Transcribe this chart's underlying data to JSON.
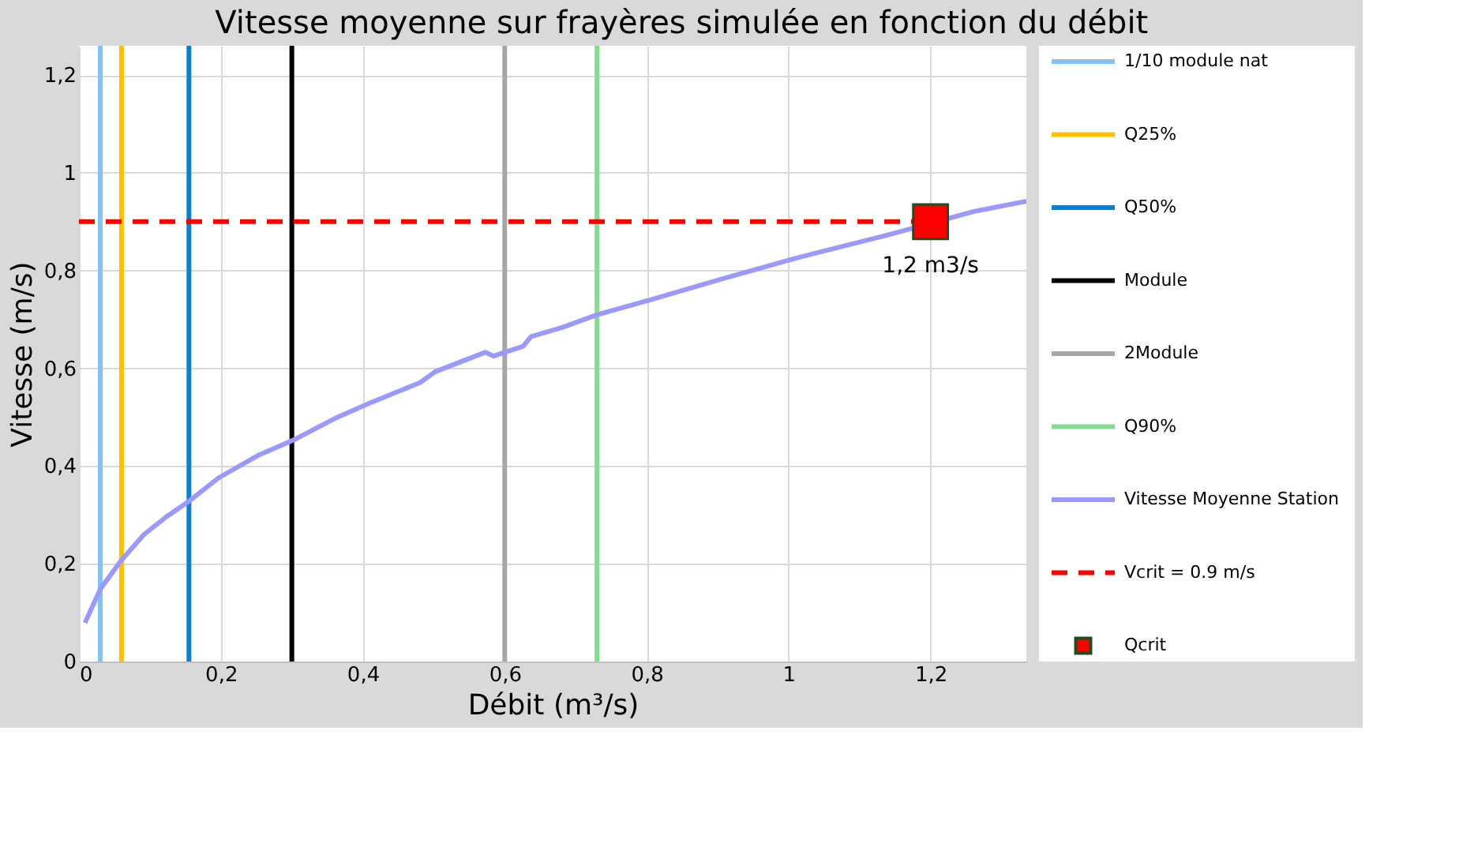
{
  "chart_data": {
    "type": "line",
    "title": "Vitesse moyenne sur frayères simulée en fonction du débit",
    "xlabel": "Débit (m³/s)",
    "ylabel": "Vitesse (m/s)",
    "xlim": [
      0,
      1.335
    ],
    "xticks": [
      0,
      {
        "value": 0.2,
        "label": "0,2"
      },
      {
        "value": 0.4,
        "label": "0,4"
      },
      {
        "value": 0.6,
        "label": "0,6"
      },
      {
        "value": 0.8,
        "label": "0,8"
      },
      1,
      {
        "value": 1.2,
        "label": "1,2"
      }
    ],
    "ylim": [
      0,
      1.26
    ],
    "yticks": [
      0,
      {
        "value": 0.2,
        "label": "0,2"
      },
      {
        "value": 0.4,
        "label": "0,4"
      },
      {
        "value": 0.6,
        "label": "0,6"
      },
      {
        "value": 0.8,
        "label": "0,8"
      },
      1,
      {
        "value": 1.2,
        "label": "1,2"
      }
    ],
    "grid": true,
    "legend": "right",
    "series": [
      {
        "name": "1/10 module nat",
        "color": "#7fc4f5",
        "x": [
          0.03,
          0.03
        ],
        "values": [
          0,
          1.26
        ]
      },
      {
        "name": "Q25%",
        "color": "#ffc000",
        "x": [
          0.06,
          0.06
        ],
        "values": [
          0,
          1.26
        ]
      },
      {
        "name": "Q50%",
        "color": "#0a7fd0",
        "x": [
          0.155,
          0.155
        ],
        "values": [
          0,
          1.26
        ]
      },
      {
        "name": "Module",
        "color": "#000000",
        "x": [
          0.3,
          0.3
        ],
        "values": [
          0,
          1.26
        ]
      },
      {
        "name": "2Module",
        "color": "#a6a6a6",
        "x": [
          0.6,
          0.6
        ],
        "values": [
          0,
          1.26
        ]
      },
      {
        "name": "Q90%",
        "color": "#84dc8c",
        "x": [
          0.73,
          0.73
        ],
        "values": [
          0,
          1.26
        ]
      },
      {
        "name": "Vitesse Moyenne Station",
        "color": "#9999ff",
        "x": [
          0.0085,
          0.03,
          0.059,
          0.091,
          0.123,
          0.155,
          0.197,
          0.254,
          0.302,
          0.36,
          0.41,
          0.481,
          0.502,
          0.573,
          0.584,
          0.626,
          0.637,
          0.68,
          0.729,
          0.807,
          0.906,
          1.009,
          1.069,
          1.14,
          1.261,
          1.335
        ],
        "values": [
          0.079,
          0.148,
          0.206,
          0.259,
          0.296,
          0.328,
          0.376,
          0.423,
          0.453,
          0.497,
          0.529,
          0.571,
          0.593,
          0.633,
          0.625,
          0.645,
          0.665,
          0.683,
          0.709,
          0.741,
          0.783,
          0.825,
          0.847,
          0.873,
          0.921,
          0.942
        ]
      },
      {
        "name": "Vcrit = 0.9 m/s",
        "color": "#ff0000",
        "line_style": "dashed",
        "x": [
          0,
          1.2
        ],
        "values": [
          0.9,
          0.9
        ]
      },
      {
        "name": "Qcrit",
        "type": "scatter",
        "marker": "square",
        "color": "#ff0000",
        "x": [
          1.2
        ],
        "values": [
          0.9
        ]
      }
    ],
    "annotations": [
      {
        "text": "1,2 m3/s",
        "x": 1.2,
        "y": 0.9
      }
    ]
  }
}
